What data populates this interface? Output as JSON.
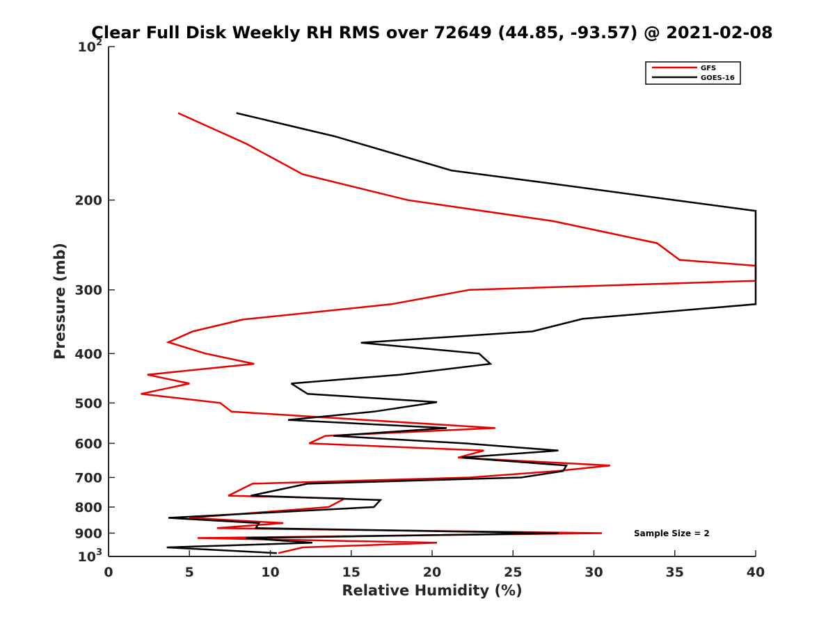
{
  "chart_data": {
    "type": "line",
    "title": "Clear Full Disk Weekly RH RMS over 72649 (44.85, -93.57) @ 2021-02-08",
    "xlabel": "Relative Humidity (%)",
    "ylabel": "Pressure (mb)",
    "xlim": [
      0,
      40
    ],
    "ylim": [
      100,
      1000
    ],
    "y_scale": "log",
    "y_reversed": true,
    "grid": false,
    "legend_position": "top-right",
    "x_ticks": [
      {
        "value": 0,
        "label": "0"
      },
      {
        "value": 5,
        "label": "5"
      },
      {
        "value": 10,
        "label": "10"
      },
      {
        "value": 15,
        "label": "15"
      },
      {
        "value": 20,
        "label": "20"
      },
      {
        "value": 25,
        "label": "25"
      },
      {
        "value": 30,
        "label": "30"
      },
      {
        "value": 35,
        "label": "35"
      },
      {
        "value": 40,
        "label": "40"
      }
    ],
    "y_ticks": [
      {
        "value": 100,
        "label": "10",
        "sup": "2"
      },
      {
        "value": 200,
        "label": "200",
        "sup": ""
      },
      {
        "value": 300,
        "label": "300",
        "sup": ""
      },
      {
        "value": 400,
        "label": "400",
        "sup": ""
      },
      {
        "value": 500,
        "label": "500",
        "sup": ""
      },
      {
        "value": 600,
        "label": "600",
        "sup": ""
      },
      {
        "value": 700,
        "label": "700",
        "sup": ""
      },
      {
        "value": 800,
        "label": "800",
        "sup": ""
      },
      {
        "value": 900,
        "label": "900",
        "sup": ""
      },
      {
        "value": 1000,
        "label": "10",
        "sup": "3"
      }
    ],
    "series": [
      {
        "name": "GFS",
        "color": "#e60000",
        "points": [
          {
            "x": 4.3,
            "p": 135
          },
          {
            "x": 8.5,
            "p": 155
          },
          {
            "x": 12.0,
            "p": 178
          },
          {
            "x": 18.5,
            "p": 200
          },
          {
            "x": 27.5,
            "p": 220
          },
          {
            "x": 33.9,
            "p": 243
          },
          {
            "x": 35.3,
            "p": 262
          },
          {
            "x": 40.0,
            "p": 269
          },
          {
            "x": 40.0,
            "p": 288
          },
          {
            "x": 22.3,
            "p": 300
          },
          {
            "x": 17.5,
            "p": 320
          },
          {
            "x": 8.3,
            "p": 343
          },
          {
            "x": 5.2,
            "p": 362
          },
          {
            "x": 3.7,
            "p": 380
          },
          {
            "x": 6.0,
            "p": 400
          },
          {
            "x": 9.0,
            "p": 419
          },
          {
            "x": 2.4,
            "p": 440
          },
          {
            "x": 5.0,
            "p": 458
          },
          {
            "x": 2.0,
            "p": 480
          },
          {
            "x": 6.9,
            "p": 500
          },
          {
            "x": 7.6,
            "p": 520
          },
          {
            "x": 23.9,
            "p": 560
          },
          {
            "x": 13.4,
            "p": 580
          },
          {
            "x": 12.4,
            "p": 600
          },
          {
            "x": 23.2,
            "p": 620
          },
          {
            "x": 21.6,
            "p": 640
          },
          {
            "x": 31.0,
            "p": 663
          },
          {
            "x": 27.7,
            "p": 680
          },
          {
            "x": 22.3,
            "p": 700
          },
          {
            "x": 8.9,
            "p": 720
          },
          {
            "x": 7.4,
            "p": 760
          },
          {
            "x": 14.6,
            "p": 770
          },
          {
            "x": 13.6,
            "p": 800
          },
          {
            "x": 5.0,
            "p": 840
          },
          {
            "x": 10.8,
            "p": 860
          },
          {
            "x": 6.7,
            "p": 880
          },
          {
            "x": 30.5,
            "p": 900
          },
          {
            "x": 5.5,
            "p": 920
          },
          {
            "x": 20.3,
            "p": 940
          },
          {
            "x": 12.0,
            "p": 960
          },
          {
            "x": 10.5,
            "p": 985
          }
        ]
      },
      {
        "name": "GOES-16",
        "color": "#000000",
        "points": [
          {
            "x": 7.9,
            "p": 135
          },
          {
            "x": 14.0,
            "p": 150
          },
          {
            "x": 21.2,
            "p": 175
          },
          {
            "x": 27.0,
            "p": 185
          },
          {
            "x": 35.0,
            "p": 200
          },
          {
            "x": 40.0,
            "p": 210
          },
          {
            "x": 40.0,
            "p": 320
          },
          {
            "x": 29.3,
            "p": 342
          },
          {
            "x": 26.2,
            "p": 362
          },
          {
            "x": 15.6,
            "p": 381
          },
          {
            "x": 22.9,
            "p": 400
          },
          {
            "x": 23.6,
            "p": 419
          },
          {
            "x": 18.0,
            "p": 440
          },
          {
            "x": 11.3,
            "p": 458
          },
          {
            "x": 12.3,
            "p": 480
          },
          {
            "x": 20.3,
            "p": 498
          },
          {
            "x": 16.4,
            "p": 520
          },
          {
            "x": 11.1,
            "p": 540
          },
          {
            "x": 20.9,
            "p": 560
          },
          {
            "x": 13.9,
            "p": 580
          },
          {
            "x": 22.0,
            "p": 600
          },
          {
            "x": 27.8,
            "p": 620
          },
          {
            "x": 21.8,
            "p": 640
          },
          {
            "x": 28.3,
            "p": 663
          },
          {
            "x": 28.1,
            "p": 680
          },
          {
            "x": 25.5,
            "p": 700
          },
          {
            "x": 12.3,
            "p": 720
          },
          {
            "x": 8.8,
            "p": 760
          },
          {
            "x": 16.8,
            "p": 775
          },
          {
            "x": 16.4,
            "p": 800
          },
          {
            "x": 3.7,
            "p": 840
          },
          {
            "x": 9.3,
            "p": 860
          },
          {
            "x": 9.1,
            "p": 880
          },
          {
            "x": 27.8,
            "p": 900
          },
          {
            "x": 8.5,
            "p": 920
          },
          {
            "x": 12.6,
            "p": 940
          },
          {
            "x": 3.6,
            "p": 960
          },
          {
            "x": 10.4,
            "p": 985
          }
        ]
      }
    ],
    "annotations": [
      "Sample Size = 2"
    ]
  }
}
